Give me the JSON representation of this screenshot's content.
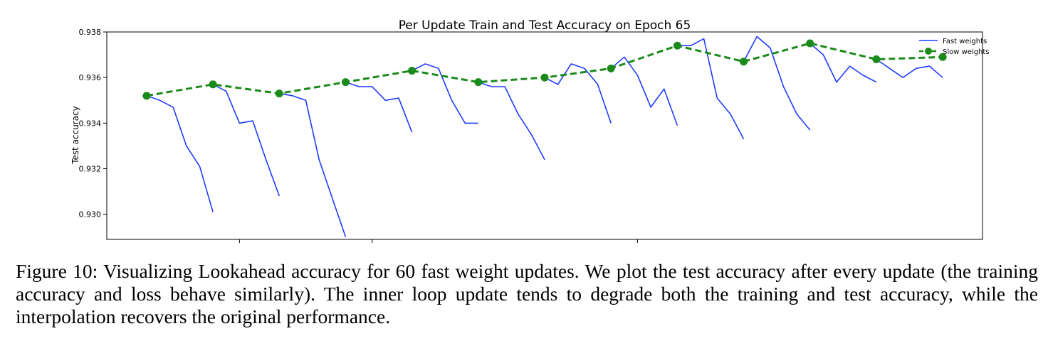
{
  "chart_data": {
    "type": "line",
    "title": "Per Update Train and Test Accuracy on Epoch 65",
    "xlabel": "",
    "ylabel": "Test accuracy",
    "ylim": [
      0.9289,
      0.938
    ],
    "y_ticks": [
      "0.930",
      "0.932",
      "0.934",
      "0.936",
      "0.938"
    ],
    "y_tick_values": [
      0.93,
      0.932,
      0.934,
      0.936,
      0.938
    ],
    "x_major_ticks": [
      10,
      20,
      40
    ],
    "xlim": [
      0,
      66
    ],
    "grid": false,
    "legend_position": "top-right",
    "series": [
      {
        "name": "Fast weights",
        "color": "#1f3bff",
        "style": "solid",
        "segments": [
          [
            [
              3,
              0.9352
            ],
            [
              4,
              0.935
            ],
            [
              5,
              0.9347
            ],
            [
              6,
              0.933
            ],
            [
              7,
              0.9321
            ],
            [
              8,
              0.9301
            ]
          ],
          [
            [
              8,
              0.9357
            ],
            [
              9,
              0.9354
            ],
            [
              10,
              0.934
            ],
            [
              11,
              0.9341
            ],
            [
              12,
              0.9324
            ],
            [
              13,
              0.9308
            ]
          ],
          [
            [
              13,
              0.9353
            ],
            [
              14,
              0.9352
            ],
            [
              15,
              0.935
            ],
            [
              16,
              0.9324
            ],
            [
              17,
              0.9307
            ],
            [
              18,
              0.929
            ]
          ],
          [
            [
              18,
              0.9358
            ],
            [
              19,
              0.9356
            ],
            [
              20,
              0.9356
            ],
            [
              21,
              0.935
            ],
            [
              22,
              0.9351
            ],
            [
              23,
              0.9336
            ]
          ],
          [
            [
              23,
              0.9363
            ],
            [
              24,
              0.9366
            ],
            [
              25,
              0.9364
            ],
            [
              26,
              0.935
            ],
            [
              27,
              0.934
            ],
            [
              28,
              0.934
            ]
          ],
          [
            [
              28,
              0.9358
            ],
            [
              29,
              0.9356
            ],
            [
              30,
              0.9356
            ],
            [
              31,
              0.9344
            ],
            [
              32,
              0.9335
            ],
            [
              33,
              0.9324
            ]
          ],
          [
            [
              33,
              0.936
            ],
            [
              34,
              0.9357
            ],
            [
              35,
              0.9366
            ],
            [
              36,
              0.9364
            ],
            [
              37,
              0.9357
            ],
            [
              38,
              0.934
            ]
          ],
          [
            [
              38,
              0.9364
            ],
            [
              39,
              0.9369
            ],
            [
              40,
              0.9361
            ],
            [
              41,
              0.9347
            ],
            [
              42,
              0.9355
            ],
            [
              43,
              0.9339
            ]
          ],
          [
            [
              43,
              0.9374
            ],
            [
              44,
              0.9374
            ],
            [
              45,
              0.9377
            ],
            [
              46,
              0.9351
            ],
            [
              47,
              0.9344
            ],
            [
              48,
              0.9333
            ]
          ],
          [
            [
              48,
              0.9367
            ],
            [
              49,
              0.9378
            ],
            [
              50,
              0.9373
            ],
            [
              51,
              0.9356
            ],
            [
              52,
              0.9344
            ],
            [
              53,
              0.9337
            ]
          ],
          [
            [
              53,
              0.9375
            ],
            [
              54,
              0.937
            ],
            [
              55,
              0.9358
            ],
            [
              56,
              0.9365
            ],
            [
              57,
              0.9361
            ],
            [
              58,
              0.9358
            ]
          ],
          [
            [
              58,
              0.9368
            ],
            [
              59,
              0.9364
            ],
            [
              60,
              0.936
            ],
            [
              61,
              0.9364
            ],
            [
              62,
              0.9365
            ],
            [
              63,
              0.936
            ]
          ]
        ]
      },
      {
        "name": "Slow weights",
        "color": "#1a8a1a",
        "style": "dashed",
        "x": [
          3,
          8,
          13,
          18,
          23,
          28,
          33,
          38,
          43,
          48,
          53,
          58,
          63
        ],
        "y": [
          0.9352,
          0.9357,
          0.9353,
          0.9358,
          0.9363,
          0.9358,
          0.936,
          0.9364,
          0.9374,
          0.9367,
          0.9375,
          0.9368,
          0.9369
        ]
      }
    ]
  },
  "caption": "Figure 10: Visualizing Lookahead accuracy for 60 fast weight updates. We plot the test accuracy after every update (the training accuracy and loss behave similarly). The inner loop update tends to degrade both the training and test accuracy, while the interpolation recovers the original performance."
}
